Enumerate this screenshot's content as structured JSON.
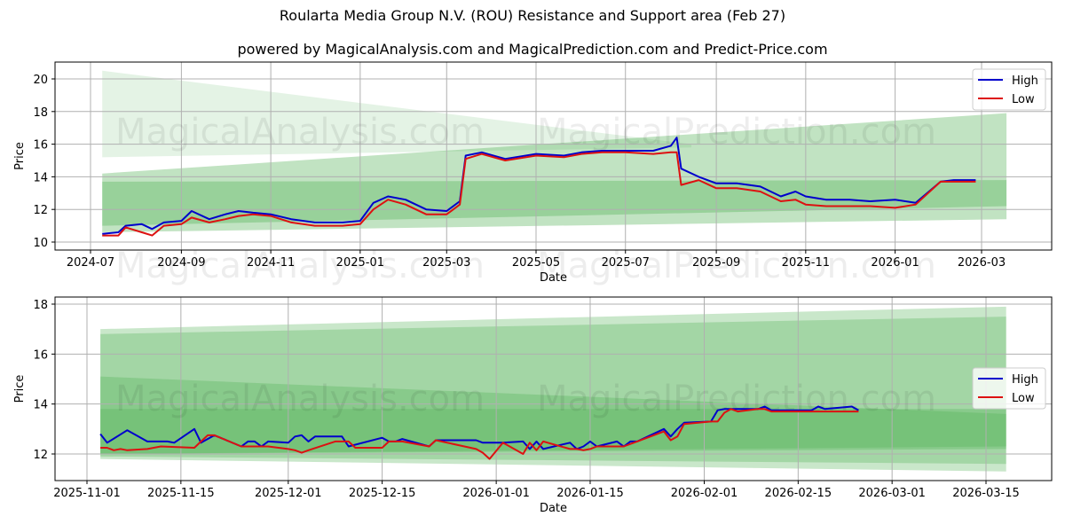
{
  "header": {
    "title": "Roularta Media Group N.V. (ROU) Resistance and Support area (Feb 27)",
    "subtitle": "powered by MagicalAnalysis.com and MagicalPrediction.com and Predict-Price.com"
  },
  "watermarks": [
    "MagicalAnalysis.com",
    "MagicalPrediction.com"
  ],
  "colors": {
    "high": "#0000cc",
    "low": "#dd1111",
    "band": "#4caf50",
    "grid": "#b0b0b0"
  },
  "chart_data": [
    {
      "type": "line",
      "title": "Roularta Media Group N.V. (ROU) Resistance and Support area (Feb 27)",
      "xlabel": "Date",
      "ylabel": "Price",
      "ylim": [
        9.9,
        21
      ],
      "yticks": [
        10,
        12,
        14,
        16,
        18,
        20
      ],
      "xticks": [
        "2024-07",
        "2024-09",
        "2024-11",
        "2025-01",
        "2025-03",
        "2025-05",
        "2025-07",
        "2025-09",
        "2025-11",
        "2026-01",
        "2026-03"
      ],
      "grid": true,
      "legend": {
        "position": "upper right",
        "entries": [
          "High",
          "Low"
        ]
      },
      "series": [
        {
          "name": "High",
          "x": [
            "2024-07-09",
            "2024-07-20",
            "2024-07-25",
            "2024-08-05",
            "2024-08-12",
            "2024-08-20",
            "2024-09-01",
            "2024-09-08",
            "2024-09-20",
            "2024-10-01",
            "2024-10-10",
            "2024-10-20",
            "2024-11-01",
            "2024-11-15",
            "2024-12-01",
            "2024-12-20",
            "2025-01-01",
            "2025-01-10",
            "2025-01-20",
            "2025-02-01",
            "2025-02-15",
            "2025-03-01",
            "2025-03-10",
            "2025-03-14",
            "2025-03-25",
            "2025-04-10",
            "2025-05-01",
            "2025-05-20",
            "2025-06-01",
            "2025-06-15",
            "2025-07-01",
            "2025-07-20",
            "2025-08-01",
            "2025-08-05",
            "2025-08-08",
            "2025-08-20",
            "2025-09-01",
            "2025-09-15",
            "2025-10-01",
            "2025-10-15",
            "2025-10-25",
            "2025-11-01",
            "2025-11-15",
            "2025-12-01",
            "2025-12-15",
            "2026-01-01",
            "2026-01-15",
            "2026-02-01",
            "2026-02-10",
            "2026-02-25"
          ],
          "values": [
            10.5,
            10.6,
            11.0,
            11.1,
            10.8,
            11.2,
            11.3,
            11.9,
            11.4,
            11.7,
            11.9,
            11.8,
            11.7,
            11.4,
            11.2,
            11.2,
            11.3,
            12.4,
            12.8,
            12.6,
            12.0,
            11.9,
            12.5,
            15.3,
            15.5,
            15.1,
            15.4,
            15.3,
            15.5,
            15.6,
            15.6,
            15.6,
            15.9,
            16.4,
            14.5,
            14.0,
            13.6,
            13.6,
            13.4,
            12.8,
            13.1,
            12.8,
            12.6,
            12.6,
            12.5,
            12.6,
            12.4,
            13.7,
            13.8,
            13.8
          ]
        },
        {
          "name": "Low",
          "x": [
            "2024-07-09",
            "2024-07-20",
            "2024-07-25",
            "2024-08-05",
            "2024-08-12",
            "2024-08-20",
            "2024-09-01",
            "2024-09-08",
            "2024-09-20",
            "2024-10-01",
            "2024-10-10",
            "2024-10-20",
            "2024-11-01",
            "2024-11-15",
            "2024-12-01",
            "2024-12-20",
            "2025-01-01",
            "2025-01-10",
            "2025-01-20",
            "2025-02-01",
            "2025-02-15",
            "2025-03-01",
            "2025-03-10",
            "2025-03-14",
            "2025-03-25",
            "2025-04-10",
            "2025-05-01",
            "2025-05-20",
            "2025-06-01",
            "2025-06-15",
            "2025-07-01",
            "2025-07-20",
            "2025-08-01",
            "2025-08-05",
            "2025-08-08",
            "2025-08-20",
            "2025-09-01",
            "2025-09-15",
            "2025-10-01",
            "2025-10-15",
            "2025-10-25",
            "2025-11-01",
            "2025-11-15",
            "2025-12-01",
            "2025-12-15",
            "2026-01-01",
            "2026-01-15",
            "2026-02-01",
            "2026-02-10",
            "2026-02-25"
          ],
          "values": [
            10.4,
            10.4,
            10.9,
            10.6,
            10.4,
            11.0,
            11.1,
            11.5,
            11.2,
            11.4,
            11.6,
            11.7,
            11.6,
            11.2,
            11.0,
            11.0,
            11.1,
            12.0,
            12.6,
            12.3,
            11.7,
            11.7,
            12.3,
            15.1,
            15.4,
            15.0,
            15.3,
            15.2,
            15.4,
            15.5,
            15.5,
            15.4,
            15.5,
            15.5,
            13.5,
            13.8,
            13.3,
            13.3,
            13.1,
            12.5,
            12.6,
            12.3,
            12.2,
            12.2,
            12.2,
            12.1,
            12.3,
            13.7,
            13.7,
            13.7
          ]
        }
      ],
      "bands": [
        {
          "label": "resistance-far-upper",
          "start": "2024-07-09",
          "end": "2025-08-15",
          "y_start": [
            15.2,
            20.5
          ],
          "y_end": [
            15.8,
            16.0
          ],
          "opacity": 0.15
        },
        {
          "label": "support-lower",
          "start": "2024-07-09",
          "end": "2026-03-18",
          "y_start": [
            10.6,
            14.2
          ],
          "y_end": [
            11.4,
            17.9
          ],
          "opacity": 0.35
        },
        {
          "label": "support-mid",
          "start": "2024-07-09",
          "end": "2026-03-18",
          "y_start": [
            11.0,
            13.7
          ],
          "y_end": [
            12.2,
            13.8
          ],
          "opacity": 0.35
        }
      ]
    },
    {
      "type": "line",
      "title": "",
      "xlabel": "Date",
      "ylabel": "Price",
      "ylim": [
        10.9,
        18.3
      ],
      "yticks": [
        12,
        14,
        16,
        18
      ],
      "xticks": [
        "2025-11-01",
        "2025-11-15",
        "2025-12-01",
        "2025-12-15",
        "2026-01-01",
        "2026-01-15",
        "2026-02-01",
        "2026-02-15",
        "2026-03-01",
        "2026-03-15"
      ],
      "grid": true,
      "legend": {
        "position": "center right",
        "entries": [
          "High",
          "Low"
        ]
      },
      "series": [
        {
          "name": "High",
          "x": [
            "2025-11-03",
            "2025-11-04",
            "2025-11-07",
            "2025-11-10",
            "2025-11-13",
            "2025-11-14",
            "2025-11-17",
            "2025-11-18",
            "2025-11-20",
            "2025-11-24",
            "2025-11-25",
            "2025-11-26",
            "2025-11-27",
            "2025-11-28",
            "2025-12-01",
            "2025-12-02",
            "2025-12-03",
            "2025-12-04",
            "2025-12-05",
            "2025-12-08",
            "2025-12-09",
            "2025-12-10",
            "2025-12-15",
            "2025-12-16",
            "2025-12-17",
            "2025-12-18",
            "2025-12-22",
            "2025-12-23",
            "2025-12-29",
            "2025-12-30",
            "2026-01-02",
            "2026-01-05",
            "2026-01-06",
            "2026-01-07",
            "2026-01-08",
            "2026-01-12",
            "2026-01-13",
            "2026-01-14",
            "2026-01-15",
            "2026-01-16",
            "2026-01-19",
            "2026-01-20",
            "2026-01-21",
            "2026-01-22",
            "2026-01-26",
            "2026-01-27",
            "2026-01-28",
            "2026-01-29",
            "2026-02-02",
            "2026-02-03",
            "2026-02-04",
            "2026-02-05",
            "2026-02-09",
            "2026-02-10",
            "2026-02-11",
            "2026-02-17",
            "2026-02-18",
            "2026-02-19",
            "2026-02-23",
            "2026-02-24"
          ],
          "values": [
            12.8,
            12.45,
            12.95,
            12.5,
            12.5,
            12.45,
            13.0,
            12.45,
            12.75,
            12.3,
            12.5,
            12.5,
            12.3,
            12.5,
            12.45,
            12.7,
            12.75,
            12.5,
            12.7,
            12.7,
            12.7,
            12.3,
            12.65,
            12.5,
            12.5,
            12.6,
            12.3,
            12.55,
            12.55,
            12.45,
            12.45,
            12.5,
            12.2,
            12.5,
            12.2,
            12.45,
            12.2,
            12.3,
            12.5,
            12.3,
            12.5,
            12.3,
            12.5,
            12.5,
            13.0,
            12.7,
            13.0,
            13.25,
            13.3,
            13.75,
            13.8,
            13.8,
            13.8,
            13.9,
            13.75,
            13.75,
            13.9,
            13.8,
            13.9,
            13.75
          ]
        },
        {
          "name": "Low",
          "x": [
            "2025-11-03",
            "2025-11-04",
            "2025-11-05",
            "2025-11-06",
            "2025-11-07",
            "2025-11-10",
            "2025-11-12",
            "2025-11-17",
            "2025-11-18",
            "2025-11-19",
            "2025-11-20",
            "2025-11-24",
            "2025-11-25",
            "2025-11-28",
            "2025-12-01",
            "2025-12-02",
            "2025-12-03",
            "2025-12-04",
            "2025-12-08",
            "2025-12-09",
            "2025-12-10",
            "2025-12-11",
            "2025-12-15",
            "2025-12-16",
            "2025-12-17",
            "2025-12-18",
            "2025-12-22",
            "2025-12-23",
            "2025-12-29",
            "2025-12-30",
            "2025-12-31",
            "2026-01-02",
            "2026-01-05",
            "2026-01-06",
            "2026-01-07",
            "2026-01-08",
            "2026-01-12",
            "2026-01-13",
            "2026-01-14",
            "2026-01-15",
            "2026-01-16",
            "2026-01-19",
            "2026-01-20",
            "2026-01-21",
            "2026-01-22",
            "2026-01-26",
            "2026-01-27",
            "2026-01-28",
            "2026-01-29",
            "2026-02-02",
            "2026-02-03",
            "2026-02-04",
            "2026-02-05",
            "2026-02-06",
            "2026-02-09",
            "2026-02-10",
            "2026-02-11",
            "2026-02-12",
            "2026-02-16",
            "2026-02-20",
            "2026-02-24"
          ],
          "values": [
            12.25,
            12.25,
            12.15,
            12.2,
            12.15,
            12.2,
            12.3,
            12.25,
            12.5,
            12.75,
            12.75,
            12.3,
            12.3,
            12.3,
            12.2,
            12.15,
            12.05,
            12.15,
            12.5,
            12.5,
            12.5,
            12.25,
            12.25,
            12.5,
            12.5,
            12.5,
            12.3,
            12.55,
            12.2,
            12.05,
            11.8,
            12.45,
            12.0,
            12.45,
            12.15,
            12.5,
            12.2,
            12.2,
            12.15,
            12.2,
            12.3,
            12.3,
            12.3,
            12.4,
            12.5,
            12.9,
            12.55,
            12.7,
            13.2,
            13.3,
            13.3,
            13.65,
            13.8,
            13.7,
            13.8,
            13.8,
            13.7,
            13.7,
            13.7,
            13.7,
            13.7
          ]
        }
      ],
      "bands": [
        {
          "label": "upper-outer",
          "start": "2025-11-03",
          "end": "2026-03-18",
          "y_start": [
            11.8,
            17.0
          ],
          "y_end": [
            11.3,
            17.9
          ],
          "opacity": 0.3
        },
        {
          "label": "upper-inner",
          "start": "2025-11-03",
          "end": "2026-03-18",
          "y_start": [
            11.9,
            16.8
          ],
          "y_end": [
            11.6,
            17.5
          ],
          "opacity": 0.3
        },
        {
          "label": "mid-a",
          "start": "2025-11-03",
          "end": "2026-03-18",
          "y_start": [
            12.0,
            15.1
          ],
          "y_end": [
            12.3,
            13.6
          ],
          "opacity": 0.3
        },
        {
          "label": "mid-b",
          "start": "2025-11-03",
          "end": "2026-03-18",
          "y_start": [
            12.0,
            13.8
          ],
          "y_end": [
            12.2,
            13.8
          ],
          "opacity": 0.3
        }
      ]
    }
  ]
}
